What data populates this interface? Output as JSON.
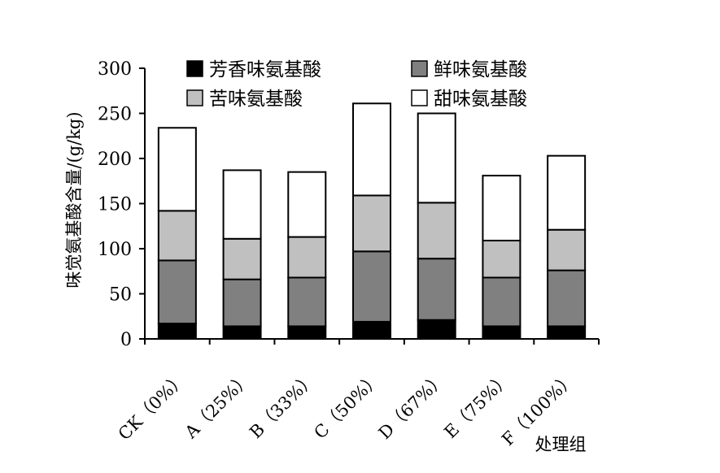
{
  "chart_data": {
    "type": "bar",
    "stacked": true,
    "categories": [
      "CK（0%）",
      "A（25%）",
      "B（33%）",
      "C（50%）",
      "D（67%）",
      "E（75%）",
      "F（100%）"
    ],
    "series": [
      {
        "name": "芳香味氨基酸",
        "color": "#000000",
        "values": [
          17,
          14,
          14,
          19,
          21,
          14,
          14
        ]
      },
      {
        "name": "鲜味氨基酸",
        "color": "#808080",
        "values": [
          70,
          52,
          54,
          78,
          68,
          54,
          62
        ]
      },
      {
        "name": "苦味氨基酸",
        "color": "#c0c0c0",
        "values": [
          55,
          45,
          45,
          62,
          62,
          41,
          45
        ]
      },
      {
        "name": "甜味氨基酸",
        "color": "#ffffff",
        "values": [
          92,
          76,
          72,
          102,
          99,
          72,
          82
        ]
      }
    ],
    "xlabel": "处理组",
    "ylabel": "味觉氨基酸含量/(g/kg)",
    "ylim": [
      0,
      300
    ],
    "yticks": [
      0,
      50,
      100,
      150,
      200,
      250,
      300
    ],
    "legend_position": "top",
    "grid": false
  }
}
